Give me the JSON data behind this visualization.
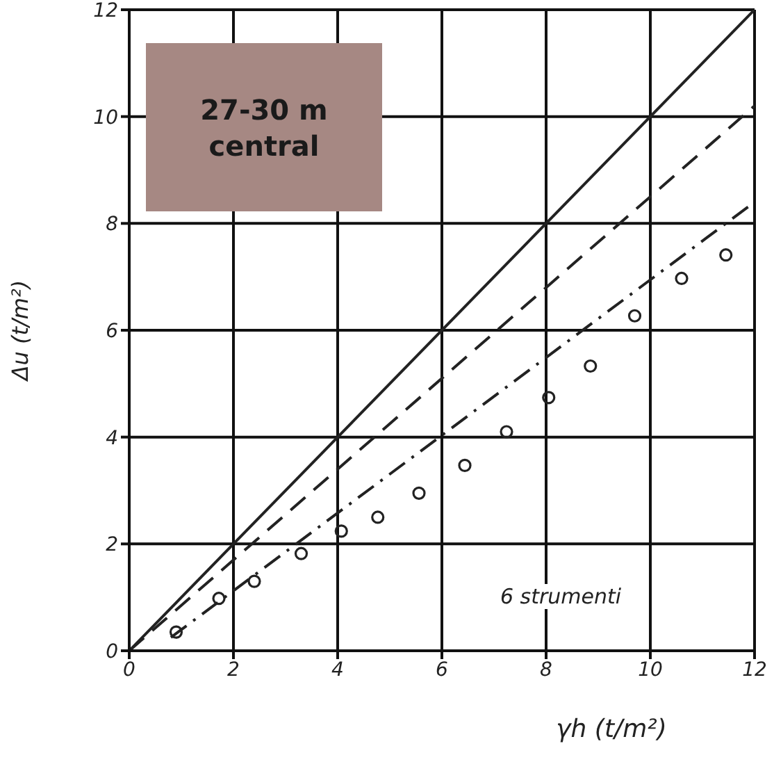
{
  "chart_data": {
    "type": "scatter",
    "xlabel": "γh (t/m²)",
    "ylabel": "Δu (t/m²)",
    "xlim": [
      0,
      12
    ],
    "ylim": [
      0,
      12
    ],
    "xticks": [
      0,
      2,
      4,
      6,
      8,
      10,
      12
    ],
    "yticks": [
      0,
      2,
      4,
      6,
      8,
      10,
      12
    ],
    "grid": true,
    "annotations": [
      "27-30 m central",
      "6 strumenti"
    ],
    "series": [
      {
        "color": "#222222",
        "marker": "circle",
        "x": [
          0.9,
          1.72,
          2.4,
          3.3,
          4.07,
          4.77,
          5.56,
          6.44,
          7.24,
          8.05,
          8.85,
          9.7,
          10.6,
          11.45
        ],
        "values": [
          0.35,
          0.98,
          1.3,
          1.82,
          2.24,
          2.5,
          2.95,
          3.47,
          4.1,
          4.74,
          5.33,
          6.27,
          6.97,
          7.41
        ]
      },
      {
        "type": "line",
        "color": "#222222",
        "line_style": "solid",
        "marker": "none",
        "x": [
          0,
          12
        ],
        "values": [
          0,
          12
        ]
      },
      {
        "type": "line",
        "color": "#222222",
        "line_style": "dashed",
        "marker": "none",
        "x": [
          0,
          12
        ],
        "values": [
          0,
          10.2
        ]
      },
      {
        "type": "line",
        "color": "#222222",
        "line_style": "dashdot",
        "marker": "none",
        "x": [
          0.8,
          12
        ],
        "values": [
          0.25,
          8.4
        ]
      }
    ]
  }
}
